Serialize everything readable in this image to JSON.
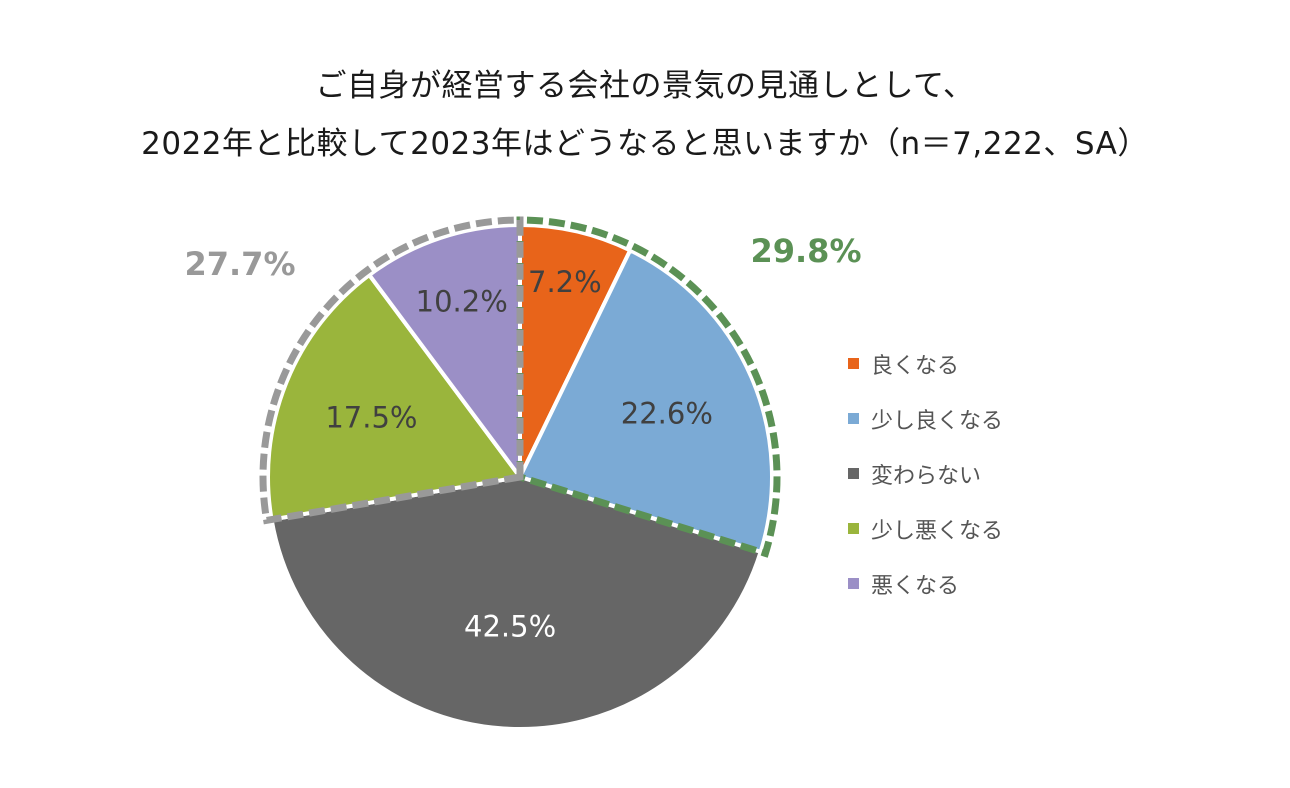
{
  "title": {
    "line1": "ご自身が経営する会社の景気の見通しとして、",
    "line2": "2022年と比較して2023年はどうなると思いますか（n＝7,222、SA）"
  },
  "chart_data": {
    "type": "pie",
    "title": "ご自身が経営する会社の景気の見通しとして、2022年と比較して2023年はどうなると思いますか（n＝7,222、SA）",
    "start_angle_deg": 0,
    "direction": "clockwise",
    "slices": [
      {
        "label": "良くなる",
        "value": 7.2,
        "display": "7.2%",
        "color": "#E8641A",
        "label_color": "#404040"
      },
      {
        "label": "少し良くなる",
        "value": 22.6,
        "display": "22.6%",
        "color": "#7BAAD5",
        "label_color": "#404040"
      },
      {
        "label": "変わらない",
        "value": 42.5,
        "display": "42.5%",
        "color": "#666666",
        "label_color": "#FFFFFF"
      },
      {
        "label": "少し悪くなる",
        "value": 17.5,
        "display": "17.5%",
        "color": "#9AB53C",
        "label_color": "#404040"
      },
      {
        "label": "悪くなる",
        "value": 10.2,
        "display": "10.2%",
        "color": "#9B8FC6",
        "label_color": "#404040"
      }
    ],
    "groups": [
      {
        "text": "29.8%",
        "members": [
          "良くなる",
          "少し良くなる"
        ],
        "color": "#5B9155"
      },
      {
        "text": "27.7%",
        "members": [
          "少し悪くなる",
          "悪くなる"
        ],
        "color": "#999999"
      }
    ],
    "legend_position": "right"
  }
}
